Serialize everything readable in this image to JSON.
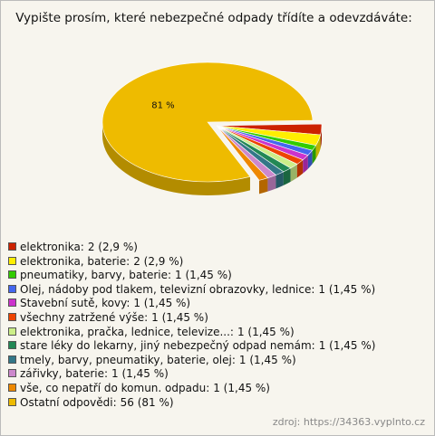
{
  "chart_data": {
    "type": "pie",
    "title": "Vypište prosím, které nebezpečné odpady třídíte a odevzdáváte:",
    "categories": [
      "elektronika",
      "elektronika, baterie",
      "pneumatiky, barvy, baterie",
      "Olej, nádoby pod tlakem, televizní obrazovky, lednice",
      "Stavební sutě, kovy",
      "všechny zatržené výše",
      "elektronika, pračka, lednice, televize...",
      "stare léky do lekarny, jiný nebezpečný odpad nemám",
      "tmely, barvy, pneumatiky, baterie, olej",
      "zářivky, baterie",
      "vše, co nepatří do komun. odpadu",
      "Ostatní odpovědi"
    ],
    "values": [
      2,
      2,
      1,
      1,
      1,
      1,
      1,
      1,
      1,
      1,
      1,
      56
    ],
    "value_labels": [
      "2 (2,9 %)",
      "2 (2,9 %)",
      "1 (1,45 %)",
      "1 (1,45 %)",
      "1 (1,45 %)",
      "1 (1,45 %)",
      "1 (1,45 %)",
      "1 (1,45 %)",
      "1 (1,45 %)",
      "1 (1,45 %)",
      "1 (1,45 %)",
      "56 (81 %)"
    ],
    "pie_labels": [
      null,
      null,
      null,
      null,
      null,
      null,
      null,
      null,
      null,
      null,
      null,
      "81 %"
    ],
    "colors": [
      "#cc2200",
      "#ffee00",
      "#33cc00",
      "#4466ee",
      "#cc33cc",
      "#ee4400",
      "#ccee88",
      "#228855",
      "#337788",
      "#cc88cc",
      "#ee8800",
      "#eebb00"
    ],
    "source": "zdroj: https://34363.vyplnto.cz"
  }
}
